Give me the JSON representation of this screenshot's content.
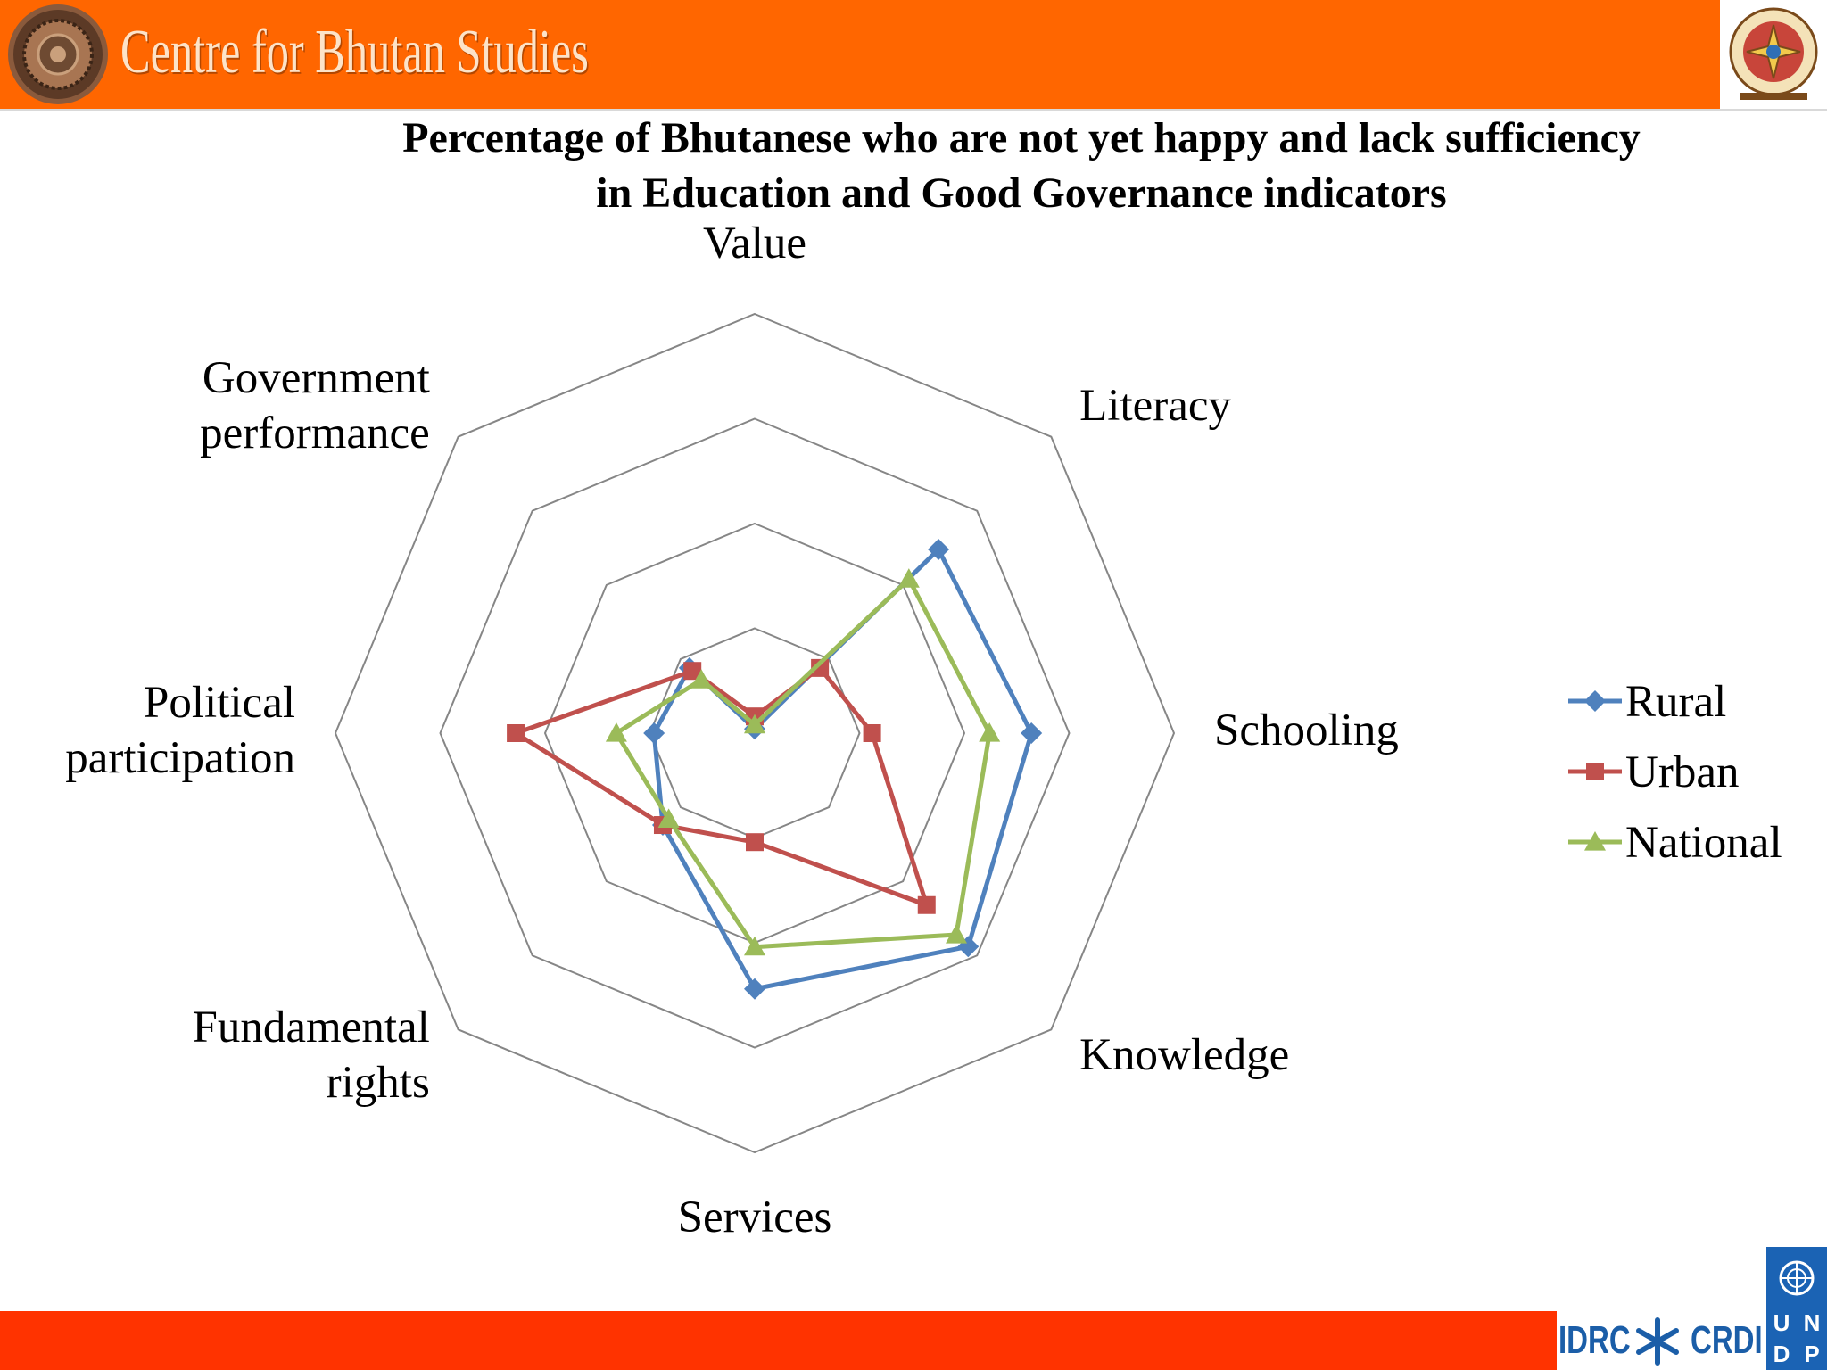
{
  "header": {
    "org_name": "Centre for Bhutan Studies"
  },
  "chart_data": {
    "type": "radar",
    "title": "Percentage of Bhutanese who are not yet happy and lack sufficiency in Education and Good Governance indicators",
    "title_lines": [
      "Percentage of Bhutanese who are not yet happy and lack sufficiency",
      "in Education and Good Governance indicators"
    ],
    "categories": [
      "Value",
      "Literacy",
      "Schooling",
      "Knowledge",
      "Services",
      "Fundamental rights",
      "Political participation",
      "Government performance"
    ],
    "category_lines": [
      [
        "Value"
      ],
      [
        "Literacy"
      ],
      [
        "Schooling"
      ],
      [
        "Knowledge"
      ],
      [
        "Services"
      ],
      [
        "Fundamental",
        "rights"
      ],
      [
        "Political",
        "participation"
      ],
      [
        "Government",
        "performance"
      ]
    ],
    "rlim": [
      0,
      100
    ],
    "rings": 4,
    "grid": true,
    "legend_position": "right",
    "series": [
      {
        "name": "Rural",
        "color": "#4f81bd",
        "marker": "diamond",
        "values": [
          1,
          62,
          66,
          72,
          61,
          31,
          24,
          22
        ]
      },
      {
        "name": "Urban",
        "color": "#c0504d",
        "marker": "square",
        "values": [
          4,
          22,
          28,
          58,
          26,
          31,
          57,
          21
        ]
      },
      {
        "name": "National",
        "color": "#9bbb59",
        "marker": "triangle",
        "values": [
          2,
          52,
          56,
          68,
          51,
          29,
          33,
          18
        ]
      }
    ]
  },
  "footer": {
    "idrc_label": "IDRC",
    "crdi_label": "CRDI",
    "undp_letters": [
      "U",
      "N",
      "D",
      "P"
    ]
  }
}
